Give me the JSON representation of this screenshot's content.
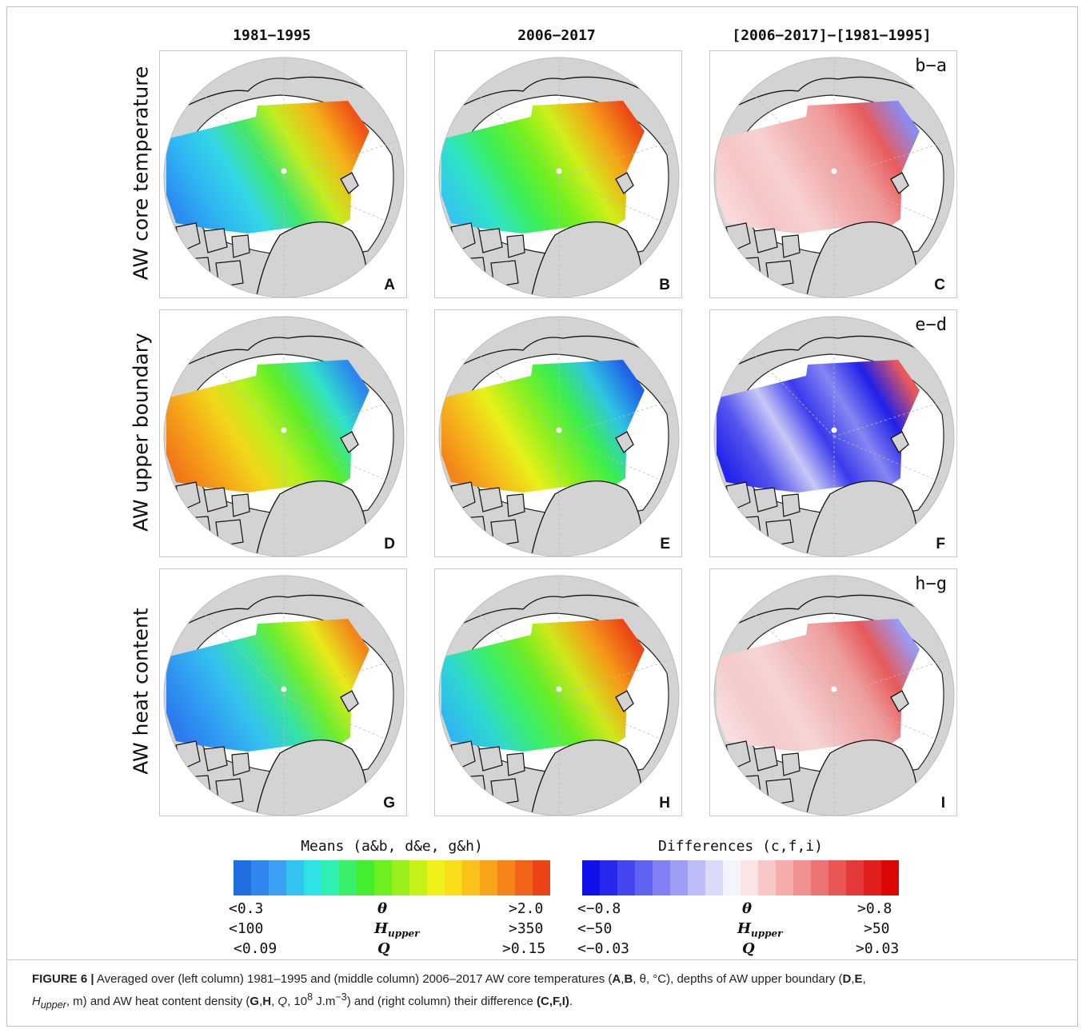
{
  "figure": {
    "column_headers": [
      "1981−1995",
      "2006−2017",
      "[2006−2017]−[1981−1995]"
    ],
    "row_labels": [
      "AW core temperature",
      "AW upper boundary",
      "AW heat content"
    ],
    "panels": [
      {
        "letter": "A",
        "tag": "",
        "scheme": "means",
        "variant": "temp81"
      },
      {
        "letter": "B",
        "tag": "",
        "scheme": "means",
        "variant": "temp06"
      },
      {
        "letter": "C",
        "tag": "b−a",
        "scheme": "diff",
        "variant": "dtemp"
      },
      {
        "letter": "D",
        "tag": "",
        "scheme": "means",
        "variant": "h81"
      },
      {
        "letter": "E",
        "tag": "",
        "scheme": "means",
        "variant": "h06"
      },
      {
        "letter": "F",
        "tag": "e−d",
        "scheme": "diff",
        "variant": "dh"
      },
      {
        "letter": "G",
        "tag": "",
        "scheme": "means",
        "variant": "q81"
      },
      {
        "letter": "H",
        "tag": "",
        "scheme": "means",
        "variant": "q06"
      },
      {
        "letter": "I",
        "tag": "h−g",
        "scheme": "diff",
        "variant": "dq"
      }
    ]
  },
  "colorbars": {
    "means": {
      "title": "Means (a&b, d&e, g&h)",
      "colors": [
        "#1f6fe0",
        "#2f86ee",
        "#3aa0f4",
        "#33c3f0",
        "#2fe2e6",
        "#2ef0b0",
        "#38f06a",
        "#42ee2e",
        "#6cf020",
        "#9af01c",
        "#c6f21a",
        "#eef21a",
        "#f8de18",
        "#f8c218",
        "#f6a418",
        "#f48418",
        "#f06418",
        "#ec4416"
      ],
      "rows": [
        {
          "min": "<0.3",
          "symbol": "θ",
          "max": ">2.0"
        },
        {
          "min": "<100",
          "symbol": "H",
          "symbol_sub": "upper",
          "max": ">350"
        },
        {
          "min": "<0.09",
          "symbol": "Q",
          "max": ">0.15"
        }
      ]
    },
    "differences": {
      "title": "Differences (c,f,i)",
      "colors": [
        "#1010e8",
        "#2828ee",
        "#4646f0",
        "#6262f2",
        "#8080f4",
        "#9e9ef6",
        "#bcbcf8",
        "#dadafa",
        "#f4f4fc",
        "#fbe4e4",
        "#f8c8c8",
        "#f4acac",
        "#f09090",
        "#ec7474",
        "#e85656",
        "#e43a3a",
        "#e01e1e",
        "#dc0606"
      ],
      "rows": [
        {
          "min": "<−0.8",
          "symbol": "θ",
          "max": ">0.8"
        },
        {
          "min": "<−50",
          "symbol": "H",
          "symbol_sub": "upper",
          "max": ">50"
        },
        {
          "min": "<−0.03",
          "symbol": "Q",
          "max": ">0.03"
        }
      ]
    }
  },
  "caption": {
    "label": "FIGURE 6 |",
    "text_1": " Averaged over (left column) 1981–1995 and (middle column) 2006–2017 AW core temperatures (",
    "ab": "A",
    "comma1": ",",
    "bb": "B",
    "text_2": ", θ, °C), depths of AW upper boundary (",
    "db": "D",
    "comma2": ",",
    "eb": "E",
    "text_3": ",",
    "h_upper_main": "H",
    "h_upper_sub": "upper",
    "text_4": ", m) and AW heat content density (",
    "gb": "G",
    "comma3": ",",
    "hb": "H",
    "text_5": ", ",
    "q": "Q",
    "text_6": ", 10",
    "exp8": "8",
    "text_7": " J.m",
    "exp_minus3": "−3",
    "text_8": ") and (right column) their difference ",
    "cfi": "(C,F,I)",
    "text_9": "."
  }
}
